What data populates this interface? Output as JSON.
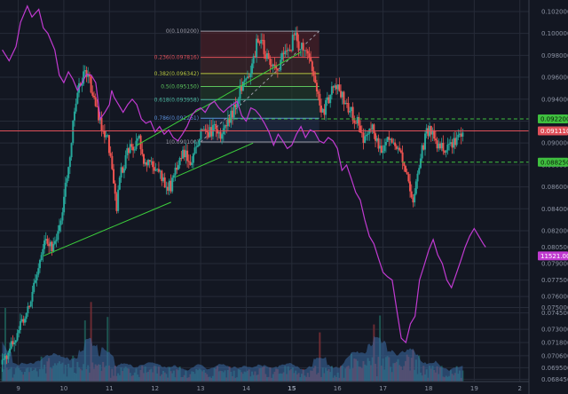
{
  "chart_data": {
    "type": "candlestick",
    "colors": {
      "background": "#131722",
      "grid": "#262b38",
      "up": "#26a69a",
      "down": "#ef5350",
      "oscillator": "#c13ad1",
      "trendline": "#3ccf3c",
      "price_line": "#e0505a",
      "level_line": "#3fbf3f",
      "fib_top": "#6b2a30",
      "fib_bottom": "#2a3a48"
    },
    "x_axis": {
      "ticks": [
        9,
        10,
        11,
        12,
        13,
        14,
        15,
        16,
        17,
        18,
        19,
        2
      ],
      "bold_tick": 15,
      "range": [
        8.6,
        20.2
      ]
    },
    "y_axis": {
      "range": [
        0.0684,
        0.1024
      ],
      "ticks": [
        "0.068450",
        "0.069500",
        "0.070600",
        "0.071800",
        "0.073000",
        "0.074500",
        "0.075000",
        "0.076000",
        "0.077500",
        "0.079000",
        "0.080500",
        "0.082000",
        "0.084000",
        "0.086000",
        "0.088000",
        "0.090000",
        "0.092000",
        "0.094000",
        "0.096000",
        "0.098000",
        "0.100000",
        "0.102000"
      ]
    },
    "fibonacci": {
      "levels": [
        {
          "label": "0(0.100200)",
          "price": 0.1002,
          "color": "#9a9aa6"
        },
        {
          "label": "0.236(0.097816)",
          "price": 0.097816,
          "color": "#e0505a"
        },
        {
          "label": "0.382(0.096342)",
          "price": 0.096342,
          "color": "#b5c440"
        },
        {
          "label": "0.5(0.095150)",
          "price": 0.09515,
          "color": "#5cc45c"
        },
        {
          "label": "0.618(0.093958)",
          "price": 0.093958,
          "color": "#4bb8a0"
        },
        {
          "label": "0.786(0.092261)",
          "price": 0.092261,
          "color": "#5a8fd8"
        },
        {
          "label": "1(0.090100)",
          "price": 0.0901,
          "color": "#9a9aa6"
        }
      ]
    },
    "price_tags": [
      {
        "label": "0.092200",
        "price": 0.0922,
        "bg": "#3fbf3f",
        "fg": "#0b1a0b"
      },
      {
        "label": "0.091110",
        "price": 0.09111,
        "bg": "#e0505a",
        "fg": "#ffffff"
      },
      {
        "label": "0.088250",
        "price": 0.08825,
        "bg": "#3fbf3f",
        "fg": "#0b1a0b"
      },
      {
        "label": "11521.00",
        "price": 0.0797,
        "bg": "#c13ad1",
        "fg": "#ffffff"
      }
    ],
    "horizontal_lines": [
      {
        "price": 0.0922,
        "style": "dashed",
        "color": "#3fbf3f"
      },
      {
        "price": 0.08825,
        "style": "dashed",
        "color": "#3fbf3f"
      },
      {
        "price": 0.09111,
        "style": "solid",
        "color": "#e0505a"
      }
    ],
    "trendlines": [
      {
        "from": [
          9.55,
          0.0797
        ],
        "to": [
          12.35,
          0.0846
        ]
      },
      {
        "from": [
          12.45,
          0.0869
        ],
        "to": [
          14.15,
          0.09
        ]
      },
      {
        "from": [
          11.6,
          0.0898
        ],
        "to": [
          15.2,
          0.0983
        ]
      }
    ],
    "close_points": [
      [
        8.65,
        0.0698
      ],
      [
        8.85,
        0.0715
      ],
      [
        9.0,
        0.073
      ],
      [
        9.15,
        0.0745
      ],
      [
        9.3,
        0.0762
      ],
      [
        9.4,
        0.0778
      ],
      [
        9.5,
        0.0798
      ],
      [
        9.6,
        0.0812
      ],
      [
        9.75,
        0.0806
      ],
      [
        9.85,
        0.081
      ],
      [
        9.95,
        0.0835
      ],
      [
        10.05,
        0.0865
      ],
      [
        10.15,
        0.0895
      ],
      [
        10.25,
        0.0935
      ],
      [
        10.35,
        0.0955
      ],
      [
        10.45,
        0.0962
      ],
      [
        10.55,
        0.0958
      ],
      [
        10.65,
        0.094
      ],
      [
        10.75,
        0.0925
      ],
      [
        10.85,
        0.091
      ],
      [
        10.95,
        0.0905
      ],
      [
        11.05,
        0.0885
      ],
      [
        11.15,
        0.084
      ],
      [
        11.25,
        0.0872
      ],
      [
        11.35,
        0.0885
      ],
      [
        11.45,
        0.0898
      ],
      [
        11.55,
        0.0893
      ],
      [
        11.65,
        0.0905
      ],
      [
        11.75,
        0.0885
      ],
      [
        11.85,
        0.088
      ],
      [
        11.95,
        0.0882
      ],
      [
        12.05,
        0.0872
      ],
      [
        12.15,
        0.0868
      ],
      [
        12.25,
        0.0862
      ],
      [
        12.35,
        0.086
      ],
      [
        12.45,
        0.0875
      ],
      [
        12.55,
        0.0888
      ],
      [
        12.65,
        0.0892
      ],
      [
        12.75,
        0.0878
      ],
      [
        12.85,
        0.0888
      ],
      [
        12.95,
        0.0905
      ],
      [
        13.05,
        0.0912
      ],
      [
        13.15,
        0.0908
      ],
      [
        13.25,
        0.091
      ],
      [
        13.35,
        0.0915
      ],
      [
        13.45,
        0.0906
      ],
      [
        13.55,
        0.0914
      ],
      [
        13.65,
        0.0922
      ],
      [
        13.75,
        0.0935
      ],
      [
        13.85,
        0.0946
      ],
      [
        13.95,
        0.0955
      ],
      [
        14.05,
        0.0962
      ],
      [
        14.15,
        0.0975
      ],
      [
        14.25,
        0.0995
      ],
      [
        14.35,
        0.099
      ],
      [
        14.45,
        0.0978
      ],
      [
        14.55,
        0.0975
      ],
      [
        14.65,
        0.0965
      ],
      [
        14.75,
        0.0972
      ],
      [
        14.85,
        0.0985
      ],
      [
        14.95,
        0.0982
      ],
      [
        15.0,
        0.0992
      ],
      [
        15.1,
        0.1
      ],
      [
        15.15,
        0.0985
      ],
      [
        15.25,
        0.0988
      ],
      [
        15.35,
        0.0978
      ],
      [
        15.45,
        0.0965
      ],
      [
        15.55,
        0.0948
      ],
      [
        15.65,
        0.0922
      ],
      [
        15.75,
        0.0935
      ],
      [
        15.85,
        0.0945
      ],
      [
        15.95,
        0.0952
      ],
      [
        16.05,
        0.0948
      ],
      [
        16.15,
        0.094
      ],
      [
        16.25,
        0.0932
      ],
      [
        16.35,
        0.0925
      ],
      [
        16.45,
        0.0918
      ],
      [
        16.55,
        0.0905
      ],
      [
        16.65,
        0.0908
      ],
      [
        16.75,
        0.0918
      ],
      [
        16.85,
        0.0902
      ],
      [
        16.95,
        0.0896
      ],
      [
        17.05,
        0.0898
      ],
      [
        17.15,
        0.091
      ],
      [
        17.25,
        0.0898
      ],
      [
        17.35,
        0.089
      ],
      [
        17.45,
        0.0885
      ],
      [
        17.55,
        0.087
      ],
      [
        17.65,
        0.0845
      ],
      [
        17.75,
        0.0872
      ],
      [
        17.85,
        0.0892
      ],
      [
        17.95,
        0.0908
      ],
      [
        18.05,
        0.0912
      ],
      [
        18.15,
        0.0902
      ],
      [
        18.25,
        0.0898
      ],
      [
        18.35,
        0.0893
      ],
      [
        18.45,
        0.0895
      ],
      [
        18.55,
        0.0899
      ],
      [
        18.65,
        0.0905
      ],
      [
        18.75,
        0.0913
      ]
    ],
    "oscillator_points": [
      [
        8.65,
        0.0985
      ],
      [
        8.8,
        0.0975
      ],
      [
        8.95,
        0.0988
      ],
      [
        9.05,
        0.101
      ],
      [
        9.2,
        0.1025
      ],
      [
        9.3,
        0.1015
      ],
      [
        9.45,
        0.1022
      ],
      [
        9.55,
        0.1005
      ],
      [
        9.65,
        0.1
      ],
      [
        9.8,
        0.0985
      ],
      [
        9.9,
        0.0962
      ],
      [
        10.0,
        0.0955
      ],
      [
        10.1,
        0.0965
      ],
      [
        10.2,
        0.0958
      ],
      [
        10.3,
        0.0948
      ],
      [
        10.4,
        0.0955
      ],
      [
        10.5,
        0.0963
      ],
      [
        10.6,
        0.0962
      ],
      [
        10.7,
        0.0955
      ],
      [
        10.8,
        0.0922
      ],
      [
        10.9,
        0.0928
      ],
      [
        11.0,
        0.0935
      ],
      [
        11.05,
        0.0948
      ],
      [
        11.1,
        0.0942
      ],
      [
        11.2,
        0.0935
      ],
      [
        11.3,
        0.0928
      ],
      [
        11.4,
        0.0935
      ],
      [
        11.5,
        0.094
      ],
      [
        11.6,
        0.0935
      ],
      [
        11.7,
        0.0922
      ],
      [
        11.8,
        0.0918
      ],
      [
        11.9,
        0.092
      ],
      [
        12.0,
        0.091
      ],
      [
        12.1,
        0.0915
      ],
      [
        12.2,
        0.0908
      ],
      [
        12.3,
        0.0912
      ],
      [
        12.4,
        0.0905
      ],
      [
        12.5,
        0.0902
      ],
      [
        12.6,
        0.0908
      ],
      [
        12.7,
        0.0915
      ],
      [
        12.8,
        0.0925
      ],
      [
        12.9,
        0.093
      ],
      [
        13.0,
        0.0932
      ],
      [
        13.1,
        0.0928
      ],
      [
        13.2,
        0.0935
      ],
      [
        13.3,
        0.0938
      ],
      [
        13.4,
        0.0932
      ],
      [
        13.5,
        0.0928
      ],
      [
        13.6,
        0.0932
      ],
      [
        13.7,
        0.0935
      ],
      [
        13.8,
        0.0938
      ],
      [
        13.9,
        0.0925
      ],
      [
        14.0,
        0.092
      ],
      [
        14.1,
        0.0932
      ],
      [
        14.2,
        0.093
      ],
      [
        14.3,
        0.0925
      ],
      [
        14.4,
        0.0918
      ],
      [
        14.5,
        0.091
      ],
      [
        14.6,
        0.0898
      ],
      [
        14.7,
        0.0908
      ],
      [
        14.8,
        0.0902
      ],
      [
        14.9,
        0.0895
      ],
      [
        15.0,
        0.0898
      ],
      [
        15.1,
        0.0908
      ],
      [
        15.2,
        0.0915
      ],
      [
        15.3,
        0.0905
      ],
      [
        15.4,
        0.0912
      ],
      [
        15.5,
        0.091
      ],
      [
        15.6,
        0.0902
      ],
      [
        15.7,
        0.09
      ],
      [
        15.8,
        0.0905
      ],
      [
        15.9,
        0.0902
      ],
      [
        16.0,
        0.0895
      ],
      [
        16.1,
        0.0875
      ],
      [
        16.2,
        0.088
      ],
      [
        16.3,
        0.0868
      ],
      [
        16.4,
        0.0855
      ],
      [
        16.5,
        0.0848
      ],
      [
        16.6,
        0.083
      ],
      [
        16.7,
        0.0815
      ],
      [
        16.8,
        0.0808
      ],
      [
        16.9,
        0.0795
      ],
      [
        17.0,
        0.0782
      ],
      [
        17.1,
        0.0778
      ],
      [
        17.2,
        0.0775
      ],
      [
        17.3,
        0.0748
      ],
      [
        17.4,
        0.0722
      ],
      [
        17.5,
        0.0718
      ],
      [
        17.6,
        0.0735
      ],
      [
        17.7,
        0.0742
      ],
      [
        17.8,
        0.0775
      ],
      [
        17.9,
        0.0788
      ],
      [
        18.0,
        0.0802
      ],
      [
        18.1,
        0.0812
      ],
      [
        18.2,
        0.0798
      ],
      [
        18.3,
        0.079
      ],
      [
        18.4,
        0.0775
      ],
      [
        18.5,
        0.0768
      ],
      [
        18.6,
        0.078
      ],
      [
        18.7,
        0.0792
      ],
      [
        18.8,
        0.0805
      ],
      [
        18.9,
        0.0815
      ],
      [
        19.0,
        0.0822
      ],
      [
        19.1,
        0.0815
      ],
      [
        19.2,
        0.0808
      ],
      [
        19.25,
        0.0805
      ]
    ]
  }
}
